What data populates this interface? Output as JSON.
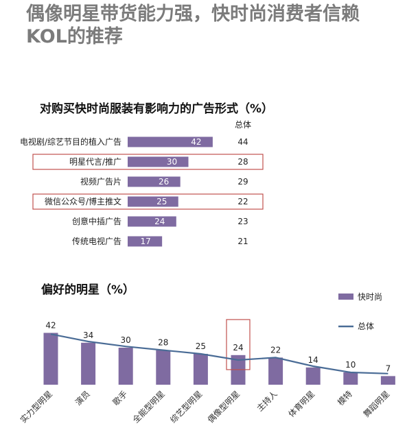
{
  "headline": {
    "line1": "偶像明星带货能力强，快时尚消费者信赖",
    "line2": "KOL的推荐"
  },
  "colors": {
    "bar": "#7f6ba1",
    "line": "#4a6c96",
    "highlight": "#c0504d",
    "headline": "#7b7b7b"
  },
  "chart_data": [
    {
      "type": "bar",
      "orientation": "horizontal",
      "title": "对购买快时尚服装有影响力的广告形式（%）",
      "categories": [
        "电视剧/综艺节目的植入广告",
        "明星代言/推广",
        "视频广告片",
        "微信公众号/博主推文",
        "创意中插广告",
        "传统电视广告"
      ],
      "series": [
        {
          "values": [
            42,
            30,
            26,
            25,
            24,
            17
          ]
        }
      ],
      "total_column_header": "总体",
      "total_values": [
        44,
        28,
        29,
        22,
        23,
        21
      ],
      "highlighted_categories": [
        "明星代言/推广",
        "微信公众号/博主推文"
      ]
    },
    {
      "type": "bar",
      "title": "偏好的明星（%）",
      "categories": [
        "实力型明星",
        "演员",
        "歌手",
        "全能型明星",
        "综艺型明星",
        "偶像型明星",
        "主持人",
        "体育明星",
        "模特",
        "舞蹈明星"
      ],
      "series": [
        {
          "name": "快时尚",
          "type": "bar",
          "values": [
            42,
            34,
            30,
            28,
            25,
            24,
            22,
            14,
            10,
            7
          ]
        },
        {
          "name": "总体",
          "type": "line",
          "values": [
            41,
            35,
            31,
            28,
            25,
            20,
            22,
            15,
            10,
            9
          ]
        }
      ],
      "highlighted_categories": [
        "偶像型明星"
      ],
      "legend_position": "top-right"
    }
  ]
}
